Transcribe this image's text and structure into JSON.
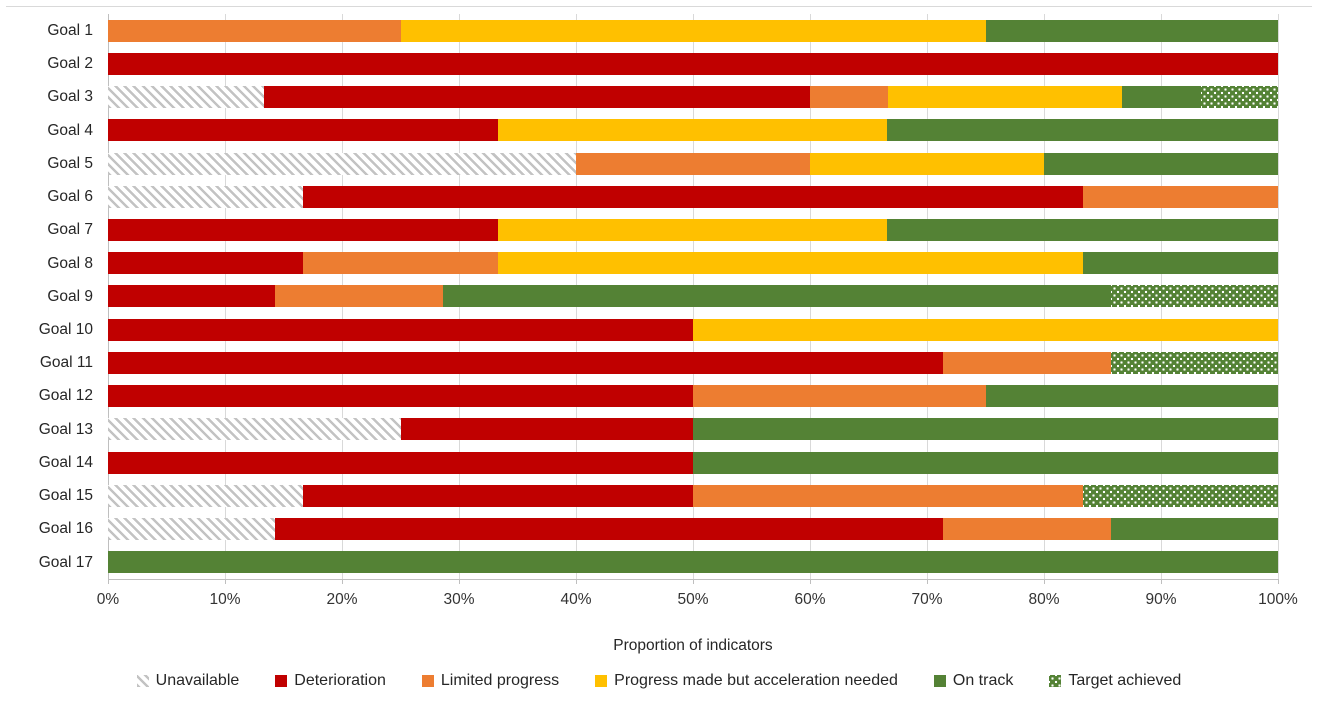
{
  "chart_data": {
    "type": "bar",
    "orientation": "horizontal",
    "stacked": true,
    "stacked_unit": "percent",
    "title": "",
    "xlabel": "Proportion of indicators",
    "ylabel": "",
    "xlim": [
      0,
      100
    ],
    "x_ticks": [
      0,
      10,
      20,
      30,
      40,
      50,
      60,
      70,
      80,
      90,
      100
    ],
    "x_tick_labels": [
      "0%",
      "10%",
      "20%",
      "30%",
      "40%",
      "50%",
      "60%",
      "70%",
      "80%",
      "90%",
      "100%"
    ],
    "grid": true,
    "legend_position": "bottom",
    "categories": [
      "Goal 1",
      "Goal 2",
      "Goal 3",
      "Goal 4",
      "Goal 5",
      "Goal 6",
      "Goal 7",
      "Goal 8",
      "Goal 9",
      "Goal 10",
      "Goal 11",
      "Goal 12",
      "Goal 13",
      "Goal 14",
      "Goal 15",
      "Goal 16",
      "Goal 17"
    ],
    "series": [
      {
        "key": "unavailable",
        "name": "Unavailable",
        "style": "hatch-gray",
        "color": "#c3c3c3",
        "values": [
          0,
          0,
          13.3,
          0,
          40,
          16.7,
          0,
          0,
          0,
          0,
          0,
          0,
          25,
          0,
          16.7,
          14.3,
          0
        ]
      },
      {
        "key": "deterioration",
        "name": "Deterioration",
        "style": "solid",
        "color": "#c00000",
        "values": [
          0,
          100,
          46.7,
          33.3,
          0,
          66.6,
          33.3,
          16.7,
          14.3,
          50,
          71.4,
          50,
          25,
          50,
          33.3,
          57.1,
          0
        ]
      },
      {
        "key": "limited-progress",
        "name": "Limited progress",
        "style": "solid",
        "color": "#ed7d31",
        "values": [
          25,
          0,
          6.7,
          0,
          20,
          16.7,
          0,
          16.6,
          14.3,
          0,
          14.3,
          25,
          0,
          0,
          33.3,
          14.3,
          0
        ]
      },
      {
        "key": "progress-acceleration",
        "name": "Progress made but acceleration needed",
        "style": "solid",
        "color": "#ffc000",
        "values": [
          50,
          0,
          20,
          33.3,
          20,
          0,
          33.3,
          50,
          0,
          50,
          0,
          0,
          0,
          0,
          0,
          0,
          0
        ]
      },
      {
        "key": "on-track",
        "name": "On track",
        "style": "solid",
        "color": "#548235",
        "values": [
          25,
          0,
          6.7,
          33.4,
          20,
          0,
          33.4,
          16.7,
          57.1,
          0,
          0,
          25,
          50,
          50,
          0,
          14.3,
          100
        ]
      },
      {
        "key": "target-achieved",
        "name": "Target achieved",
        "style": "dots-green",
        "color": "#548235",
        "values": [
          0,
          0,
          6.6,
          0,
          0,
          0,
          0,
          0,
          14.3,
          0,
          14.3,
          0,
          0,
          0,
          16.7,
          0,
          0
        ]
      }
    ]
  }
}
